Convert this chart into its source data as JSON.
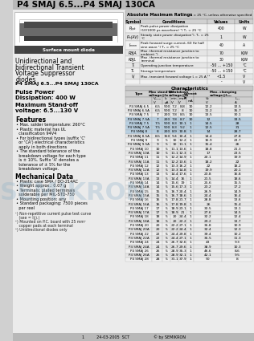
{
  "title": "P4 SMAJ 6.5...P4 SMAJ 130CA",
  "abs_max_title": "Absolute Maximum Ratings",
  "abs_max_subtitle": "Tₖ = 25 °C, unless otherwise specified",
  "abs_max_headers": [
    "Symbol",
    "Conditions",
    "Values",
    "Units"
  ],
  "abs_max_rows": [
    [
      "Pₚₚₖ",
      "Peak pulse power dissipation\n(10/1000 μs waveform) ¹) Tₖ = 25 °C",
      "400",
      "W"
    ],
    [
      "Pₘ(AV)",
      "Steady state power dissipation¹), Tₖ = 25\n°C",
      "1",
      "W"
    ],
    [
      "Iₘₘₘ",
      "Peak forward surge current, 60 Hz half\nsine wave ¹) Tₖ = 25 °C",
      "40",
      "A"
    ],
    [
      "RθJA",
      "Max. thermal resistance junction to\nambient ¹)",
      "70",
      "K/W"
    ],
    [
      "RθJL",
      "Max. thermal resistance junction to\nterminal",
      "30",
      "K/W"
    ],
    [
      "Tⱼ",
      "Operating junction temperature",
      "-50 ... +150",
      "°C"
    ],
    [
      "Tₛ",
      "Storage temperature",
      "-50 ... +150",
      "°C"
    ],
    [
      "Vⱼ",
      "Max. transient forward voltage Iⱼ = 25 A ¹³",
      "<1.5",
      "V"
    ],
    [
      "",
      "",
      "-",
      "V"
    ]
  ],
  "char_title": "Characteristics",
  "char_rows": [
    [
      "P4 SMAJ 6.5",
      "6.5",
      "500",
      "7.2",
      "8.8",
      "10",
      "12.2",
      "32.5"
    ],
    [
      "P4 SMAJ 6.5A",
      "6.5",
      "500",
      "7.2",
      "8",
      "10",
      "11.2",
      "35.7"
    ],
    [
      "P4 SMAJ 7.5",
      "7",
      "200",
      "7.8",
      "8.5",
      "10",
      "13.5",
      "30.1"
    ],
    [
      "P4 SMAJ 7.5A",
      "7",
      "200",
      "7.8",
      "8.7",
      "10",
      "12",
      "33.5"
    ],
    [
      "P4 SMAJ 7.5",
      "7.5",
      "500",
      "8.3",
      "10.1",
      "1",
      "14.5",
      "28"
    ],
    [
      "P4 SMAJ 7.5A",
      "7.5",
      "500",
      "8.3",
      "9.2",
      "1",
      "12.5",
      "31"
    ],
    [
      "P4 SMAJ 8",
      "8",
      "200",
      "8.9",
      "10.8",
      "1",
      "14",
      "28.7"
    ],
    [
      "P4 SMAJ 8.5A",
      "8.5",
      "150",
      "9.4",
      "10.4",
      "1",
      "14.4",
      "27.8"
    ],
    [
      "P4 SMAJ 9",
      "9",
      "5",
      "10",
      "12.2",
      "1",
      "16.9",
      "23.7"
    ],
    [
      "P4 SMAJ 9.5A",
      "9",
      "5",
      "10",
      "11.1",
      "1",
      "15.4",
      "26"
    ],
    [
      "P4 SMAJ 10",
      "10",
      "5",
      "11.1",
      "13.6",
      "1",
      "18.8",
      "21.3"
    ],
    [
      "P4 SMAJ 10A",
      "10",
      "5",
      "11.1",
      "12.3",
      "1",
      "17",
      "23.5"
    ],
    [
      "P4 SMAJ 11",
      "11",
      "5",
      "12.2",
      "14.9",
      "1",
      "20.1",
      "19.9"
    ],
    [
      "P4 SMAJ 11A",
      "11",
      "5",
      "12.2",
      "13.6",
      "1",
      "18.2",
      "22"
    ],
    [
      "P4 SMAJ 12",
      "12",
      "5",
      "13.3",
      "16.2",
      "1",
      "22",
      "18.2"
    ],
    [
      "P4 SMAJ 12A",
      "12",
      "5",
      "13.3",
      "14.8",
      "1",
      "19.9",
      "20.1"
    ],
    [
      "P4 SMAJ 13",
      "13",
      "5",
      "14.4",
      "17.6",
      "1",
      "23.8",
      "16.8"
    ],
    [
      "P4 SMAJ 13A",
      "13",
      "5",
      "14.4",
      "16",
      "1",
      "21.5",
      "18.6"
    ],
    [
      "P4 SMAJ 14",
      "14",
      "5",
      "15.6",
      "19",
      "1",
      "25.6",
      "15.5"
    ],
    [
      "P4 SMAJ 14A",
      "14",
      "5",
      "15.6",
      "17.3",
      "1",
      "23.2",
      "17.2"
    ],
    [
      "P4 SMAJ 15",
      "15",
      "5",
      "16.7",
      "20.4",
      "1",
      "26.9",
      "14.9"
    ],
    [
      "P4 SMAJ 15A",
      "15",
      "5",
      "16.7",
      "18.6",
      "1",
      "24.4",
      "16.4"
    ],
    [
      "P4 SMAJ 16",
      "16",
      "5",
      "17.8",
      "21.7",
      "1",
      "28.8",
      "13.6"
    ],
    [
      "P4 SMAJ 16A",
      "16",
      "5",
      "17.8",
      "19.8",
      "1",
      "26",
      "15.4"
    ],
    [
      "P4 SMAJ 17",
      "17",
      "5",
      "18.9",
      "23.1",
      "1",
      "30.5",
      "13.1"
    ],
    [
      "P4 SMAJ 17A",
      "17",
      "5",
      "18.9",
      "21",
      "1",
      "27.6",
      "14.5"
    ],
    [
      "P4 SMAJ 18",
      "18",
      "5",
      "20",
      "24.4",
      "1",
      "32.2",
      "12.4"
    ],
    [
      "P4 SMAJ 18A",
      "18",
      "5",
      "20",
      "22.2",
      "1",
      "29.2",
      "13.7"
    ],
    [
      "P4 SMAJ 20",
      "20",
      "5",
      "22.2",
      "27.1",
      "1",
      "36.8",
      "10.9"
    ],
    [
      "P4 SMAJ 20A",
      "20",
      "5",
      "22.2",
      "24.4",
      "1",
      "32.4",
      "12.3"
    ],
    [
      "P4 SMAJ 22",
      "22",
      "5",
      "24.4",
      "29.8",
      "1",
      "39.4",
      "10.2"
    ],
    [
      "P4 SMAJ 22A",
      "22",
      "5",
      "24.4",
      "27.1",
      "1",
      "35.5",
      "11.3"
    ],
    [
      "P4 SMAJ 24",
      "24",
      "5",
      "26.7",
      "32.6",
      "1",
      "43",
      "9.3"
    ],
    [
      "P4 SMAJ 24A",
      "24",
      "5",
      "26.7",
      "29.6",
      "1",
      "38.9",
      "10.3"
    ],
    [
      "P4 SMAJ 26",
      "26",
      "5",
      "28.9",
      "35.3",
      "1",
      "46.6",
      "8.6"
    ],
    [
      "P4 SMAJ 26A",
      "26",
      "5",
      "28.9",
      "32.1",
      "1",
      "42.1",
      "9.5"
    ],
    [
      "P4 SMAJ 28",
      "28",
      "5",
      "31.1",
      "37.9",
      "1",
      "50",
      "8"
    ]
  ],
  "highlight_rows": [
    3,
    4,
    5,
    6
  ],
  "left_title1": "Unidirectional and",
  "left_title2": "bidirectional Transient",
  "left_title3": "Voltage Suppressor",
  "left_title4": "diodes",
  "left_subtitle": "P4 SMAJ 6.5...P4 SMAJ 130CA",
  "pulse_power": "Pulse Power",
  "dissipation": "Dissipation: 400 W",
  "max_standoff": "Maximum Stand-off",
  "voltage_range": "voltage: 6.5...130 V",
  "features_title": "Features",
  "features": [
    "Max. solder temperature: 260°C",
    "Plastic material has UL\n  classification 94V4",
    "For bidirectional types (suffix 'C'\n  or 'CA') electrical characteristics\n  apply in both directions",
    "The standard tolerance of the\n  breakdown voltage for each type\n  is ± 10%. Suffix 'A' denotes a\n  tolerance of ± 5% for the\n  breakdown voltage."
  ],
  "mech_title": "Mechanical Data",
  "mech": [
    "Plastic case SMA / DO-214AC",
    "Weight approx.: 0.07 g",
    "Terminals: plated terminals\n  solderable per MIL-STD-750",
    "Mounting position: any",
    "Standard packaging: 7500 pieces\n  per reel"
  ],
  "notes": [
    "¹) Non-repetitive current pulse test curve\n   (see = I(ⱼ).)",
    "²) Mounted on P.C. board with 25 mm²\n   copper pads at each terminal",
    "³) Unidirectional diodes only"
  ],
  "footer": "1          24-03-2005  SCT                    © by SEMIKRON"
}
